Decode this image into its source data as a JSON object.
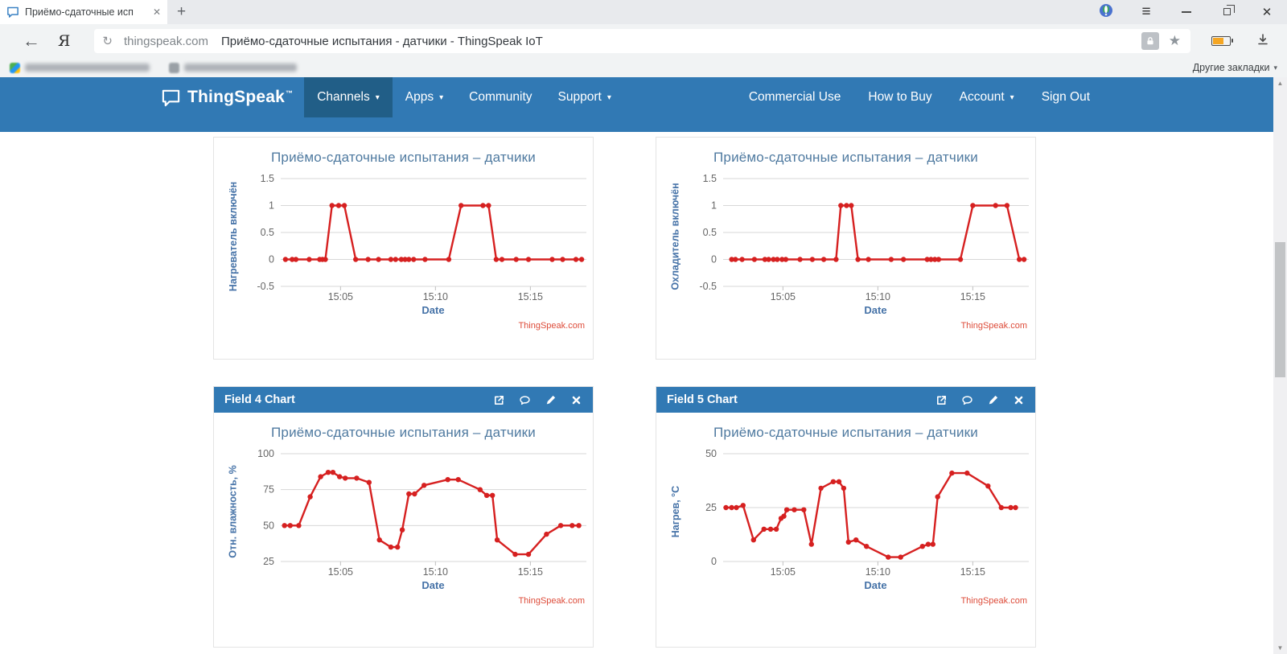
{
  "browser": {
    "tab_title": "Приёмо-сдаточные исп",
    "tab_close": "✕",
    "new_tab": "+",
    "menu_icon": "≡",
    "close_icon": "✕",
    "back": "←",
    "yandex_logo": "Я",
    "reload": "↻",
    "url_domain": "thingspeak.com",
    "url_page_title": "Приёмо-сдаточные испытания - датчики - ThingSpeak IoT",
    "bookmark_star": "★",
    "other_bookmarks": "Другие закладки",
    "other_bookmarks_caret": "▾",
    "scroll_up": "▲",
    "scroll_down": "▼"
  },
  "navbar": {
    "brand": "ThingSpeak",
    "brand_tm": "™",
    "caret": "▾",
    "left_items": [
      {
        "label": "Channels",
        "caret": true,
        "active": true
      },
      {
        "label": "Apps",
        "caret": true,
        "active": false
      },
      {
        "label": "Community",
        "caret": false,
        "active": false
      },
      {
        "label": "Support",
        "caret": true,
        "active": false
      }
    ],
    "right_items": [
      {
        "label": "Commercial Use",
        "caret": false
      },
      {
        "label": "How to Buy",
        "caret": false
      },
      {
        "label": "Account",
        "caret": true
      },
      {
        "label": "Sign Out",
        "caret": false
      }
    ]
  },
  "colors": {
    "nav_blue": "#3179b4",
    "nav_active": "#215e87",
    "line_red": "#d62020",
    "chart_title": "#4f7aa0",
    "axis_label": "#4572a7",
    "tick_label": "#666666",
    "grid_line": "#d7d7d7",
    "credit_red": "#dd4b39"
  },
  "chart_data": [
    {
      "type": "line",
      "panel": null,
      "title": "Приёмо-сдаточные испытания – датчики",
      "xlabel": "Date",
      "ylabel": "Нагреватель включён",
      "credit": "ThingSpeak.com",
      "yticks": [
        "1.5",
        "1",
        "0.5",
        "0",
        "-0.5"
      ],
      "ylim": [
        -0.5,
        1.5
      ],
      "xlim": [
        1.85,
        17.95
      ],
      "xticks": [
        {
          "t": 5,
          "label": "15:05"
        },
        {
          "t": 10,
          "label": "15:10"
        },
        {
          "t": 15,
          "label": "15:15"
        }
      ],
      "grid": true,
      "legend": false,
      "points": [
        [
          2.1,
          0
        ],
        [
          2.45,
          0
        ],
        [
          2.65,
          0
        ],
        [
          3.35,
          0
        ],
        [
          3.9,
          0
        ],
        [
          4.05,
          0
        ],
        [
          4.2,
          0
        ],
        [
          4.55,
          1
        ],
        [
          4.9,
          1
        ],
        [
          5.2,
          1
        ],
        [
          5.8,
          0
        ],
        [
          6.45,
          0
        ],
        [
          7.0,
          0
        ],
        [
          7.65,
          0
        ],
        [
          7.9,
          0
        ],
        [
          8.2,
          0
        ],
        [
          8.4,
          0
        ],
        [
          8.6,
          0
        ],
        [
          8.85,
          0
        ],
        [
          9.45,
          0
        ],
        [
          10.7,
          0
        ],
        [
          11.35,
          1
        ],
        [
          12.5,
          1
        ],
        [
          12.8,
          1
        ],
        [
          13.2,
          0
        ],
        [
          13.5,
          0
        ],
        [
          14.25,
          0
        ],
        [
          14.9,
          0
        ],
        [
          16.15,
          0
        ],
        [
          16.7,
          0
        ],
        [
          17.4,
          0
        ],
        [
          17.7,
          0
        ]
      ]
    },
    {
      "type": "line",
      "panel": null,
      "title": "Приёмо-сдаточные испытания – датчики",
      "xlabel": "Date",
      "ylabel": "Охладитель включён",
      "credit": "ThingSpeak.com",
      "yticks": [
        "1.5",
        "1",
        "0.5",
        "0",
        "-0.5"
      ],
      "ylim": [
        -0.5,
        1.5
      ],
      "xlim": [
        1.85,
        17.95
      ],
      "xticks": [
        {
          "t": 5,
          "label": "15:05"
        },
        {
          "t": 10,
          "label": "15:10"
        },
        {
          "t": 15,
          "label": "15:15"
        }
      ],
      "grid": true,
      "legend": false,
      "points": [
        [
          2.3,
          0
        ],
        [
          2.5,
          0
        ],
        [
          2.85,
          0
        ],
        [
          3.5,
          0
        ],
        [
          4.05,
          0
        ],
        [
          4.25,
          0
        ],
        [
          4.5,
          0
        ],
        [
          4.7,
          0
        ],
        [
          4.95,
          0
        ],
        [
          5.15,
          0
        ],
        [
          5.9,
          0
        ],
        [
          6.55,
          0
        ],
        [
          7.15,
          0
        ],
        [
          7.8,
          0
        ],
        [
          8.05,
          1
        ],
        [
          8.35,
          1
        ],
        [
          8.6,
          1
        ],
        [
          8.95,
          0
        ],
        [
          9.5,
          0
        ],
        [
          10.7,
          0
        ],
        [
          11.35,
          0
        ],
        [
          12.6,
          0
        ],
        [
          12.8,
          0
        ],
        [
          13.0,
          0
        ],
        [
          13.2,
          0
        ],
        [
          14.35,
          0
        ],
        [
          15.0,
          1
        ],
        [
          16.2,
          1
        ],
        [
          16.8,
          1
        ],
        [
          17.45,
          0
        ],
        [
          17.7,
          0
        ]
      ]
    },
    {
      "type": "line",
      "panel": "Field 4 Chart",
      "panel_icons": [
        "external-link-icon",
        "comment-icon",
        "edit-icon",
        "close-icon"
      ],
      "title": "Приёмо-сдаточные испытания – датчики",
      "xlabel": "Date",
      "ylabel": "Отн. влажность, %",
      "credit": "ThingSpeak.com",
      "yticks": [
        "100",
        "75",
        "50",
        "25"
      ],
      "ylim": [
        25,
        100
      ],
      "xlim": [
        1.85,
        17.95
      ],
      "xticks": [
        {
          "t": 5,
          "label": "15:05"
        },
        {
          "t": 10,
          "label": "15:10"
        },
        {
          "t": 15,
          "label": "15:15"
        }
      ],
      "grid": true,
      "legend": false,
      "points": [
        [
          2.05,
          50
        ],
        [
          2.35,
          50
        ],
        [
          2.8,
          50
        ],
        [
          3.4,
          70
        ],
        [
          3.95,
          84
        ],
        [
          4.35,
          87
        ],
        [
          4.6,
          87
        ],
        [
          4.95,
          84
        ],
        [
          5.25,
          83
        ],
        [
          5.85,
          83
        ],
        [
          6.5,
          80
        ],
        [
          7.05,
          40
        ],
        [
          7.65,
          35
        ],
        [
          8.0,
          35
        ],
        [
          8.25,
          47
        ],
        [
          8.6,
          72
        ],
        [
          8.9,
          72
        ],
        [
          9.4,
          78
        ],
        [
          10.65,
          82
        ],
        [
          11.2,
          82
        ],
        [
          12.35,
          75
        ],
        [
          12.7,
          71
        ],
        [
          13.0,
          71
        ],
        [
          13.25,
          40
        ],
        [
          14.2,
          30
        ],
        [
          14.9,
          30
        ],
        [
          15.85,
          44
        ],
        [
          16.6,
          50
        ],
        [
          17.2,
          50
        ],
        [
          17.55,
          50
        ]
      ]
    },
    {
      "type": "line",
      "panel": "Field 5 Chart",
      "panel_icons": [
        "external-link-icon",
        "comment-icon",
        "edit-icon",
        "close-icon"
      ],
      "title": "Приёмо-сдаточные испытания – датчики",
      "xlabel": "Date",
      "ylabel": "Нагрев, °C",
      "credit": "ThingSpeak.com",
      "yticks": [
        "50",
        "25",
        "0"
      ],
      "ylim": [
        0,
        50
      ],
      "xlim": [
        1.85,
        17.95
      ],
      "xticks": [
        {
          "t": 5,
          "label": "15:05"
        },
        {
          "t": 10,
          "label": "15:10"
        },
        {
          "t": 15,
          "label": "15:15"
        }
      ],
      "grid": true,
      "legend": false,
      "points": [
        [
          2.0,
          25
        ],
        [
          2.3,
          25
        ],
        [
          2.55,
          25
        ],
        [
          2.9,
          26
        ],
        [
          3.45,
          10
        ],
        [
          4.0,
          15
        ],
        [
          4.35,
          15
        ],
        [
          4.65,
          15
        ],
        [
          4.9,
          20
        ],
        [
          5.05,
          21
        ],
        [
          5.2,
          24
        ],
        [
          5.6,
          24
        ],
        [
          6.1,
          24
        ],
        [
          6.5,
          8
        ],
        [
          7.0,
          34
        ],
        [
          7.65,
          37
        ],
        [
          7.95,
          37
        ],
        [
          8.2,
          34
        ],
        [
          8.45,
          9
        ],
        [
          8.85,
          10
        ],
        [
          9.4,
          7
        ],
        [
          10.55,
          2
        ],
        [
          11.2,
          2
        ],
        [
          12.35,
          7
        ],
        [
          12.65,
          8
        ],
        [
          12.9,
          8
        ],
        [
          13.15,
          30
        ],
        [
          13.9,
          41
        ],
        [
          14.7,
          41
        ],
        [
          15.8,
          35
        ],
        [
          16.5,
          25
        ],
        [
          17.0,
          25
        ],
        [
          17.25,
          25
        ]
      ]
    }
  ]
}
